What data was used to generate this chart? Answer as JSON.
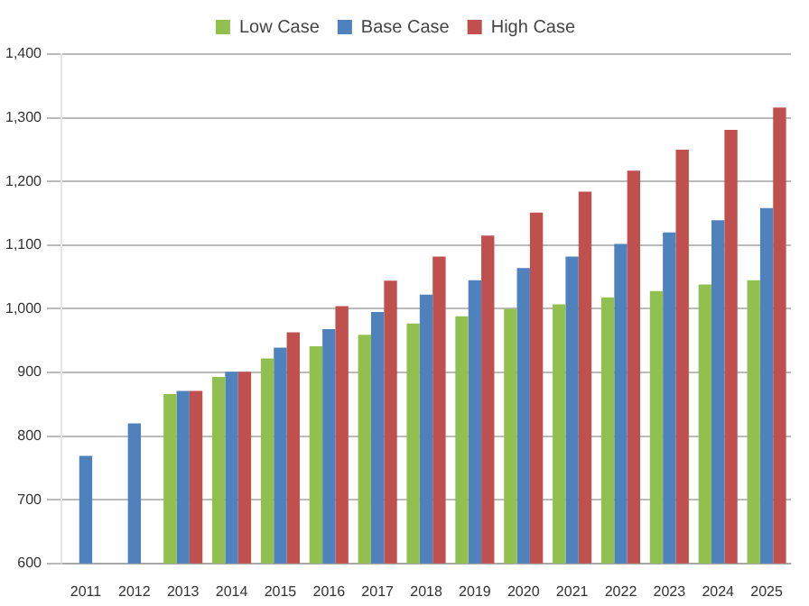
{
  "chart_data": {
    "type": "bar",
    "categories": [
      "2011",
      "2012",
      "2013",
      "2014",
      "2015",
      "2016",
      "2017",
      "2018",
      "2019",
      "2020",
      "2021",
      "2022",
      "2023",
      "2024",
      "2025"
    ],
    "series": [
      {
        "name": "Low Case",
        "color": "#92c050",
        "values": [
          null,
          null,
          866,
          893,
          922,
          941,
          959,
          977,
          988,
          1000,
          1007,
          1018,
          1028,
          1038,
          1045
        ]
      },
      {
        "name": "Base Case",
        "color": "#4f81bd",
        "values": [
          769,
          820,
          871,
          901,
          939,
          968,
          995,
          1022,
          1045,
          1064,
          1082,
          1102,
          1120,
          1139,
          1158
        ]
      },
      {
        "name": "High Case",
        "color": "#c0504d",
        "values": [
          null,
          null,
          871,
          901,
          963,
          1004,
          1044,
          1082,
          1115,
          1151,
          1184,
          1217,
          1250,
          1281,
          1316
        ]
      }
    ],
    "ylim": [
      600,
      1400
    ],
    "yticks": [
      {
        "value": 600,
        "label": "600"
      },
      {
        "value": 700,
        "label": "700"
      },
      {
        "value": 800,
        "label": "800"
      },
      {
        "value": 900,
        "label": "900"
      },
      {
        "value": 1000,
        "label": "1,000"
      },
      {
        "value": 1100,
        "label": "1,100"
      },
      {
        "value": 1200,
        "label": "1,200"
      },
      {
        "value": 1300,
        "label": "1,300"
      },
      {
        "value": 1400,
        "label": "1,400"
      }
    ],
    "grid": "y",
    "legend": "top"
  }
}
